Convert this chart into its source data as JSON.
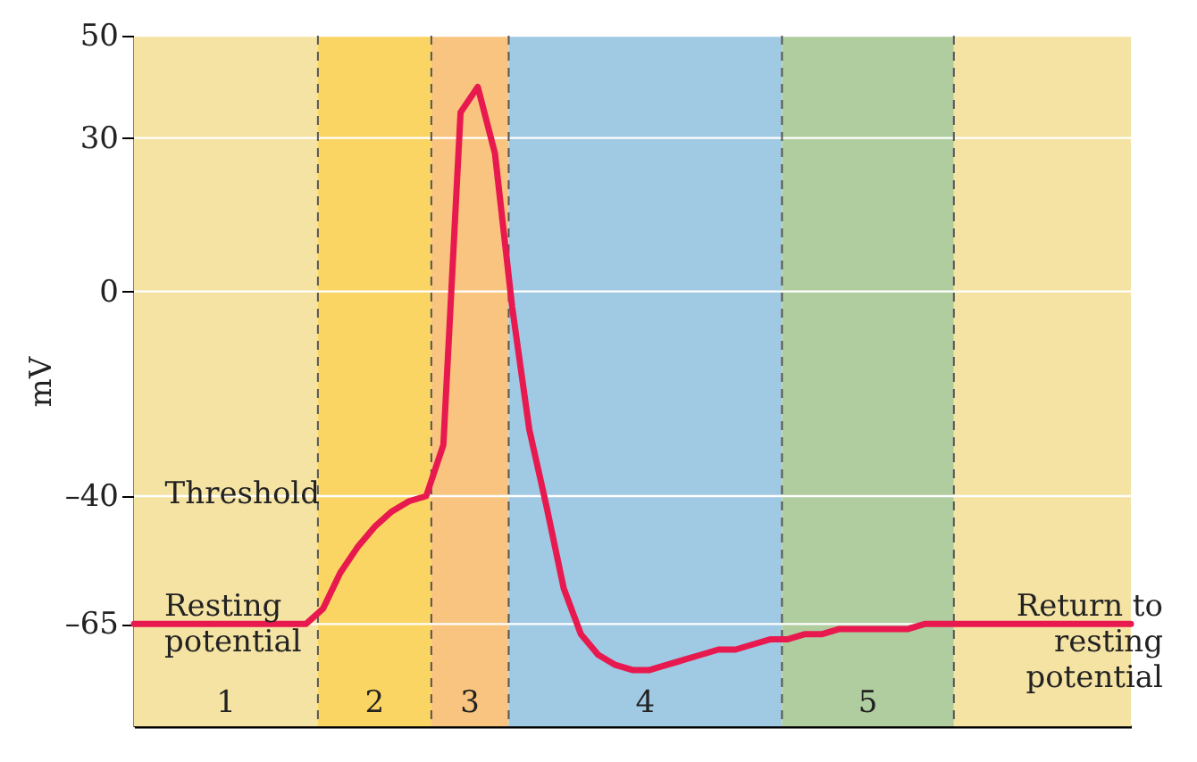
{
  "chart_data": {
    "type": "line",
    "ylabel": "mV",
    "categories": [
      null,
      null,
      null,
      null,
      null,
      null,
      null,
      null,
      null,
      null,
      null,
      null,
      null,
      null,
      null,
      null,
      null,
      null,
      null,
      null,
      null,
      null,
      null,
      null,
      null,
      null,
      null,
      null,
      null,
      null,
      null,
      null,
      null,
      null,
      null,
      null,
      null,
      null,
      null,
      null,
      null,
      null,
      null,
      null,
      null,
      null,
      null,
      null,
      null,
      null,
      null,
      null,
      null,
      null,
      null,
      null,
      null,
      null,
      null
    ],
    "series": [
      {
        "color": "#e8194f",
        "values": [
          -65,
          -65,
          -65,
          -65,
          -65,
          -65,
          -65,
          -65,
          -65,
          -65,
          -65,
          -62,
          -55,
          -50,
          -46,
          -43,
          -41,
          -40,
          -30,
          35,
          40,
          27,
          -3,
          -27,
          -42,
          -58,
          -67,
          -71,
          -73,
          -74,
          -74,
          -73,
          -72,
          -71,
          -70,
          -70,
          -69,
          -68,
          -68,
          -67,
          -67,
          -66,
          -66,
          -66,
          -66,
          -66,
          -65,
          -65,
          -65,
          -65,
          -65,
          -65,
          -65,
          -65,
          -65,
          -65,
          -65,
          -65,
          -65
        ]
      }
    ],
    "ylim": [
      -85,
      50
    ],
    "yticks": [
      50,
      30,
      0,
      {
        "value": -40,
        "label": "–40"
      },
      {
        "value": -65,
        "label": "–65"
      }
    ],
    "grid": "y",
    "tick_labels": "y",
    "marker": "none",
    "line_style": "solid",
    "annotations": [
      "Threshold",
      "Resting\npotential",
      "Return to\nresting\npotential",
      "1",
      "2",
      "3",
      "4",
      "5"
    ]
  }
}
